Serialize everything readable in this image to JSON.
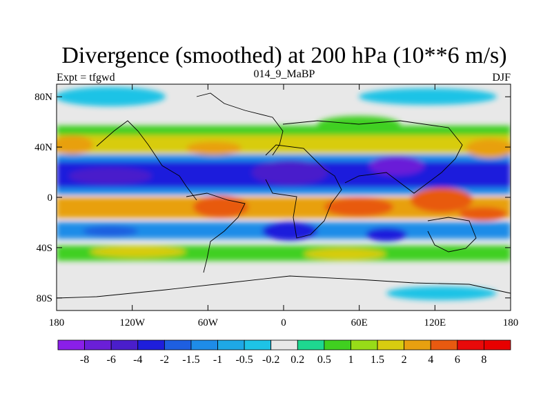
{
  "chart_data": {
    "type": "heatmap",
    "title": "Divergence (smoothed) at 200 hPa (10**6 m/s)",
    "left_label": "Expt = tfgwd",
    "center_label": "014_9_MaBP",
    "right_label": "DJF",
    "x_range": [
      -180,
      180
    ],
    "y_range": [
      -90,
      90
    ],
    "x_ticks": [
      {
        "value": -180,
        "label": "180"
      },
      {
        "value": -120,
        "label": "120W"
      },
      {
        "value": -60,
        "label": "60W"
      },
      {
        "value": 0,
        "label": "0"
      },
      {
        "value": 60,
        "label": "60E"
      },
      {
        "value": 120,
        "label": "120E"
      },
      {
        "value": 180,
        "label": "180"
      }
    ],
    "y_ticks": [
      {
        "value": 80,
        "label": "80N"
      },
      {
        "value": 40,
        "label": "40N"
      },
      {
        "value": 0,
        "label": "0"
      },
      {
        "value": -40,
        "label": "40S"
      },
      {
        "value": -80,
        "label": "80S"
      }
    ],
    "levels": [
      "-8",
      "-6",
      "-4",
      "-2",
      "-1.5",
      "-1",
      "-0.5",
      "-0.2",
      "0.2",
      "0.5",
      "1",
      "1.5",
      "2",
      "4",
      "6",
      "8"
    ],
    "colors": [
      "#8a1fe8",
      "#6a1fd8",
      "#4a1ecb",
      "#1e1edc",
      "#1e5fe0",
      "#1e8ce8",
      "#1ea8e6",
      "#1ec3e6",
      "#e8e8e8",
      "#1ed890",
      "#40d020",
      "#98dc18",
      "#d8cc10",
      "#e8a010",
      "#e85a10",
      "#e80a0a",
      "#e80000"
    ]
  }
}
